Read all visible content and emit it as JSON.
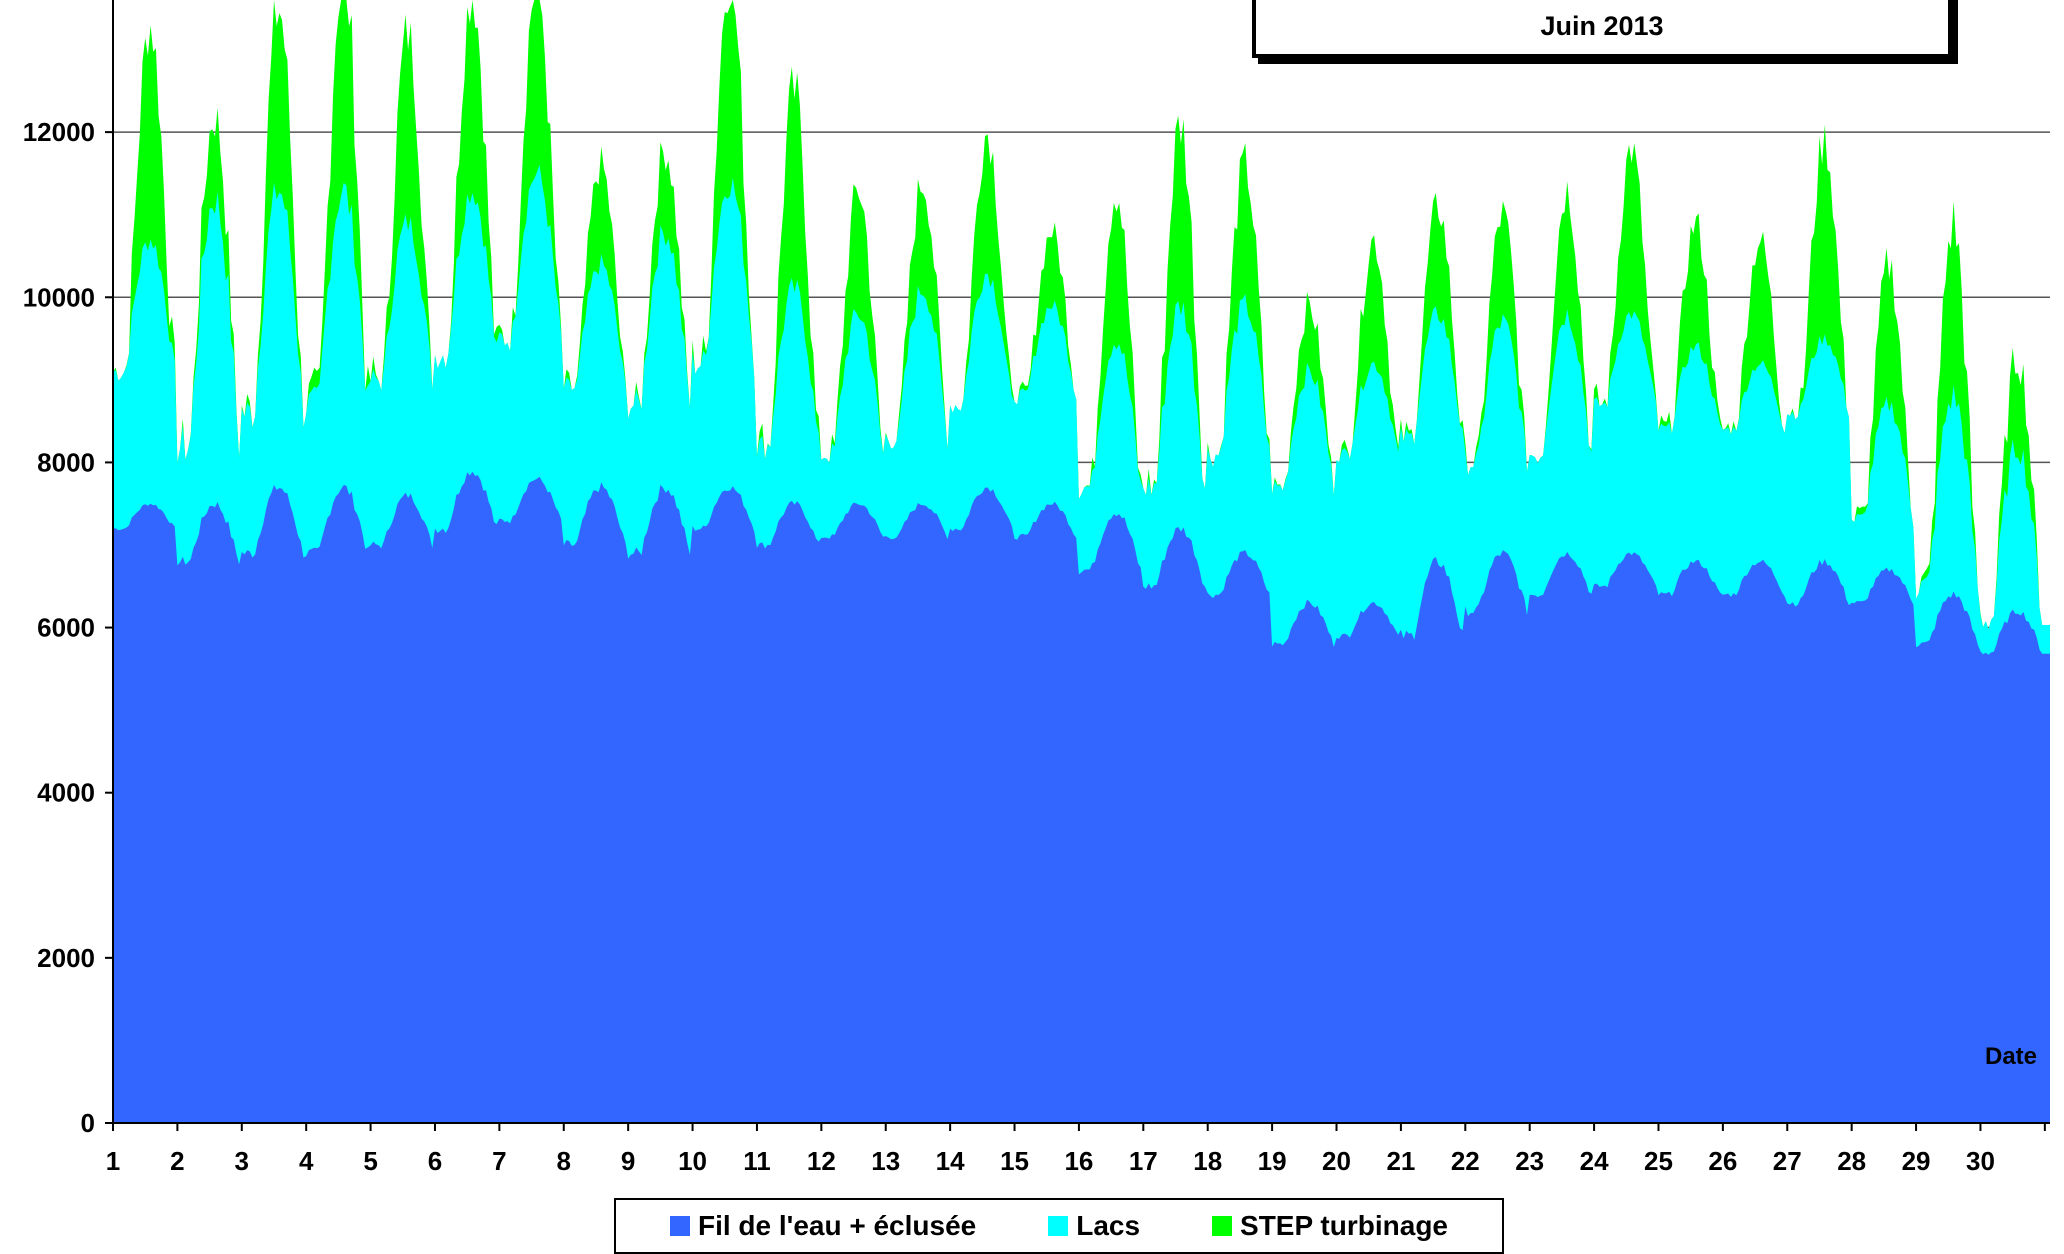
{
  "title": {
    "line1": "",
    "line2": "Juin  2013"
  },
  "legend": [
    {
      "label": "Fil de l'eau + éclusée",
      "color": "#3366FF"
    },
    {
      "label": "Lacs",
      "color": "#00FFFF"
    },
    {
      "label": "STEP turbinage",
      "color": "#00FF00"
    }
  ],
  "chart_data": {
    "type": "area",
    "stacked": true,
    "xlabel": "Date",
    "ylabel": "",
    "ylim": [
      0,
      13600
    ],
    "yticks": [
      0,
      2000,
      4000,
      6000,
      8000,
      10000,
      12000
    ],
    "grid": "horizontal",
    "x_categories": [
      "1",
      "2",
      "3",
      "4",
      "5",
      "6",
      "7",
      "8",
      "9",
      "10",
      "11",
      "12",
      "13",
      "14",
      "15",
      "16",
      "17",
      "18",
      "19",
      "20",
      "21",
      "22",
      "23",
      "24",
      "25",
      "26",
      "27",
      "28",
      "29",
      "30"
    ],
    "series": [
      {
        "name": "Fil de l'eau + éclusée",
        "color": "#3366FF",
        "day_min": [
          7200,
          6800,
          6900,
          6900,
          7000,
          7200,
          7300,
          7000,
          6900,
          7200,
          7000,
          7100,
          7100,
          7200,
          7100,
          6700,
          6500,
          6400,
          5800,
          5900,
          5900,
          6200,
          6400,
          6500,
          6400,
          6400,
          6300,
          6300,
          5800,
          5700
        ],
        "day_max": [
          7500,
          7500,
          7700,
          7700,
          7600,
          7900,
          7800,
          7700,
          7700,
          7700,
          7500,
          7500,
          7500,
          7700,
          7500,
          7400,
          7200,
          6900,
          6300,
          6300,
          6800,
          6900,
          6900,
          6900,
          6800,
          6800,
          6800,
          6700,
          6400,
          6200
        ]
      },
      {
        "name": "Lacs",
        "color": "#00FFFF",
        "day_min": [
          1900,
          1400,
          1700,
          1800,
          2000,
          2100,
          2200,
          1900,
          1800,
          2000,
          1200,
          1000,
          1200,
          1500,
          1700,
          1000,
          1200,
          1700,
          1900,
          2200,
          2400,
          1800,
          1700,
          2200,
          2000,
          2000,
          2300,
          1000,
          700,
          400
        ],
        "day_max": [
          3200,
          3700,
          3600,
          3600,
          3300,
          3400,
          3700,
          2700,
          3100,
          3700,
          2600,
          2300,
          2600,
          2600,
          2400,
          2100,
          2700,
          3000,
          2800,
          2900,
          3000,
          2800,
          2900,
          2900,
          2600,
          2400,
          2700,
          2000,
          2400,
          2000
        ]
      },
      {
        "name": "STEP turbinage",
        "color": "#00FF00",
        "day_min": [
          0,
          0,
          0,
          0,
          0,
          0,
          0,
          0,
          0,
          0,
          0,
          0,
          0,
          0,
          0,
          0,
          0,
          0,
          0,
          0,
          0,
          0,
          0,
          0,
          0,
          0,
          0,
          0,
          0,
          0
        ],
        "day_max": [
          2600,
          1000,
          2200,
          2700,
          2300,
          2400,
          2300,
          1200,
          1000,
          2500,
          2400,
          1500,
          1300,
          1700,
          900,
          1800,
          2200,
          1700,
          800,
          1500,
          1300,
          1300,
          1500,
          2000,
          1500,
          1500,
          2400,
          1700,
          2100,
          1100
        ]
      }
    ]
  }
}
